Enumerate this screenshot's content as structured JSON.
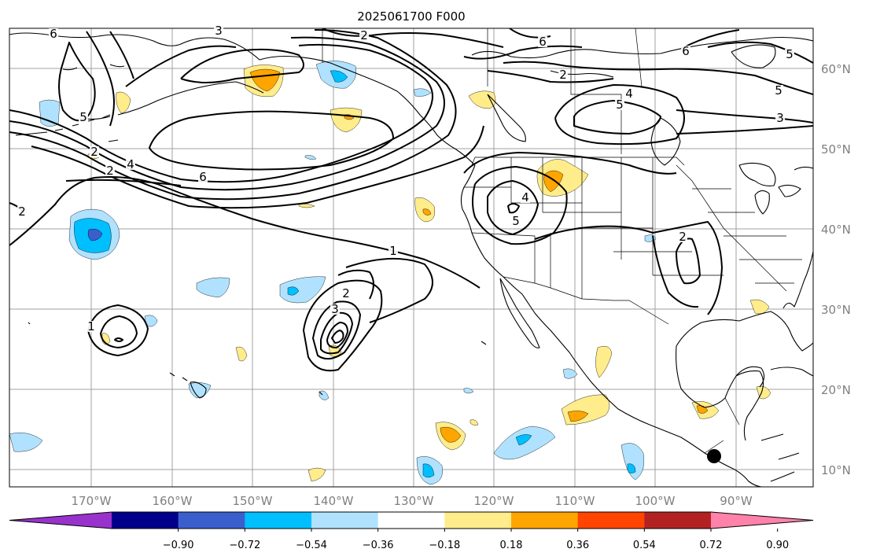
{
  "title": "2025061700 F000",
  "longitude_labels": [
    "170°W",
    "160°W",
    "150°W",
    "140°W",
    "130°W",
    "120°W",
    "110°W",
    "100°W",
    "90°W"
  ],
  "latitude_labels": [
    "60°N",
    "50°N",
    "40°N",
    "30°N",
    "20°N",
    "10°N"
  ],
  "colorbar": {
    "tick_labels": [
      "−0.90",
      "−0.72",
      "−0.54",
      "−0.36",
      "−0.18",
      "0.18",
      "0.36",
      "0.54",
      "0.72",
      "0.90"
    ],
    "colors": [
      "#9932cc",
      "#00008b",
      "#3a5fcd",
      "#00bfff",
      "#b0e2ff",
      "#ffffff",
      "#ffec8b",
      "#ffa500",
      "#ff4500",
      "#b22222",
      "#ff82ab"
    ],
    "extend": "both"
  },
  "contour_labels": [
    "6",
    "3",
    "2",
    "6",
    "5",
    "6",
    "5",
    "4",
    "5",
    "3",
    "2",
    "2",
    "4",
    "6",
    "2",
    "5",
    "4",
    "5",
    "2",
    "1",
    "2",
    "3",
    "1",
    "2"
  ],
  "colors": {
    "land_border": "#000000",
    "grid": "#a0a0a0",
    "tick_text": "#7f7f7f"
  },
  "marker": "black dot"
}
